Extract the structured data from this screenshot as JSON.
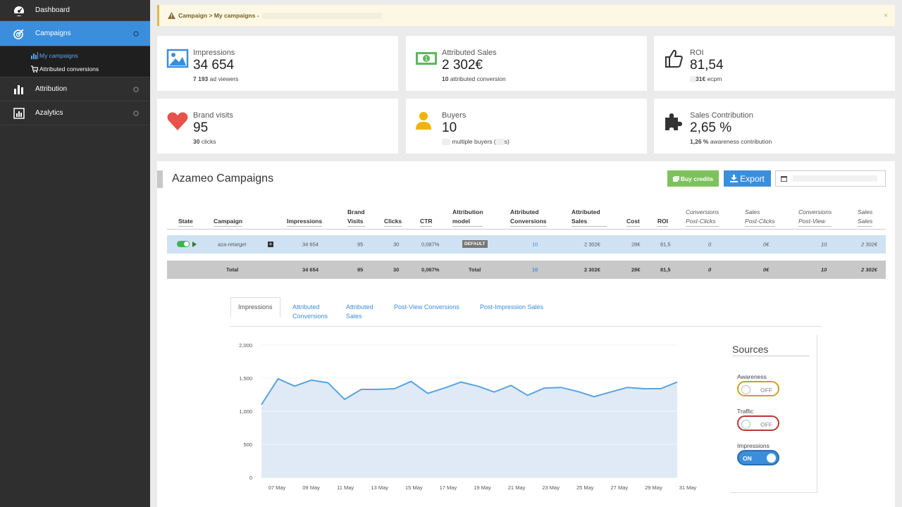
{
  "sidebar": {
    "items": [
      {
        "label": "Dashboard",
        "icon": "dashboard-icon"
      },
      {
        "label": "Campaigns",
        "icon": "campaigns-icon",
        "active": true
      },
      {
        "label": "Attribution",
        "icon": "bar-chart-icon"
      },
      {
        "label": "Azalytics",
        "icon": "analytics-icon"
      }
    ],
    "subitems": [
      {
        "label": "My campaigns",
        "icon": "bar-chart-small-icon",
        "active": true
      },
      {
        "label": "Attributed conversions",
        "icon": "cart-icon"
      }
    ]
  },
  "breadcrumb": {
    "text": "Campaign > My campaigns -",
    "close": "×"
  },
  "stats": {
    "impressions": {
      "title": "Impressions",
      "value": "34 654",
      "sub_bold": "7 193",
      "sub_text": "ad viewers",
      "icon": "image-icon",
      "color": "#3a8edc"
    },
    "attributed_sales": {
      "title": "Attributed Sales",
      "value": "2 302€",
      "sub_bold": "10",
      "sub_text": "attributed conversion",
      "icon": "money-icon",
      "color": "#5cb85c"
    },
    "roi": {
      "title": "ROI",
      "value": "81,54",
      "sub_bold": "31€",
      "sub_text": "ecpm",
      "icon": "thumbs-up-icon"
    },
    "brand_visits": {
      "title": "Brand visits",
      "value": "95",
      "sub_bold": "30",
      "sub_text": "clicks",
      "icon": "heart-icon",
      "color": "#e8524a"
    },
    "buyers": {
      "title": "Buyers",
      "value": "10",
      "sub_text": "multiple buyers (",
      "sub_tail": "s)",
      "icon": "user-icon",
      "color": "#f0b400"
    },
    "sales_contribution": {
      "title": "Sales Contribution",
      "value": "2,65 %",
      "sub_bold": "1,26 %",
      "sub_text": "awareness contribution",
      "icon": "puzzle-icon"
    }
  },
  "panel": {
    "title": "Azameo Campaigns",
    "buy_credits": "Buy credits",
    "export": "Export"
  },
  "table": {
    "headers": [
      {
        "l1": "",
        "l2": "State"
      },
      {
        "l1": "",
        "l2": "Campaign"
      },
      {
        "l1": "",
        "l2": "Impressions"
      },
      {
        "l1": "Brand",
        "l2": "Visits"
      },
      {
        "l1": "",
        "l2": "Clicks"
      },
      {
        "l1": "",
        "l2": "CTR"
      },
      {
        "l1": "Attribution",
        "l2": "model"
      },
      {
        "l1": "Attributed",
        "l2": "Conversions"
      },
      {
        "l1": "Attributed",
        "l2": "Sales"
      },
      {
        "l1": "",
        "l2": "Cost"
      },
      {
        "l1": "",
        "l2": "ROI"
      },
      {
        "l1": "Conversions",
        "l2": "Post-Clicks"
      },
      {
        "l1": "Sales",
        "l2": "Post-Clicks"
      },
      {
        "l1": "Conversions",
        "l2": "Post-View"
      },
      {
        "l1": "Sales",
        "l2": "Sales"
      }
    ],
    "row": {
      "campaign": "aza-retarget",
      "impressions": "34 654",
      "brand_visits": "95",
      "clicks": "30",
      "ctr": "0,087%",
      "model": "DEFAULT",
      "conversions": "10",
      "sales": "2 302€",
      "cost": "28€",
      "roi": "81,5",
      "conv_post_clicks": "0",
      "sales_post_clicks": "0€",
      "conv_post_view": "10",
      "sales_sales": "2 302€"
    },
    "total": {
      "label": "Total",
      "impressions": "34 654",
      "brand_visits": "95",
      "clicks": "30",
      "ctr": "0,087%",
      "model": "Total",
      "conversions": "10",
      "sales": "2 302€",
      "cost": "28€",
      "roi": "81,5",
      "conv_post_clicks": "0",
      "sales_post_clicks": "0€",
      "conv_post_view": "10",
      "sales_sales": "2 302€"
    }
  },
  "tabs": [
    {
      "l1": "Impressions",
      "l2": "",
      "active": true
    },
    {
      "l1": "Attributed",
      "l2": "Conversions"
    },
    {
      "l1": "Attributed",
      "l2": "Sales"
    },
    {
      "l1": "Post-View Conversions",
      "l2": ""
    },
    {
      "l1": "Post-Impression Sales",
      "l2": ""
    }
  ],
  "sources": {
    "title": "Sources",
    "items": [
      {
        "label": "Awareness",
        "state": "OFF",
        "color": "#c9a227"
      },
      {
        "label": "Traffic",
        "state": "OFF",
        "color": "#b33a3a"
      },
      {
        "label": "Impressions",
        "state": "ON",
        "color": "#3a8edc"
      }
    ]
  },
  "chart_data": {
    "type": "area",
    "title": "",
    "xlabel": "",
    "ylabel": "",
    "ylim": [
      0,
      2000
    ],
    "yticks": [
      "0",
      "500",
      "1,000",
      "1,500",
      "2,000"
    ],
    "x_labels": [
      "07 May",
      "09 May",
      "11 May",
      "13 May",
      "15 May",
      "17 May",
      "19 May",
      "21 May",
      "23 May",
      "25 May",
      "27 May",
      "29 May",
      "31 May"
    ],
    "series": [
      {
        "values": [
          1100,
          1490,
          1380,
          1470,
          1430,
          1180,
          1330,
          1330,
          1340,
          1450,
          1270,
          1350,
          1440,
          1380,
          1290,
          1390,
          1240,
          1350,
          1360,
          1300,
          1220,
          1290,
          1360,
          1340,
          1340,
          1440
        ]
      }
    ],
    "grid": true,
    "colors": {
      "line": "#5aa3e0",
      "fill": "#dfeaf6"
    }
  }
}
